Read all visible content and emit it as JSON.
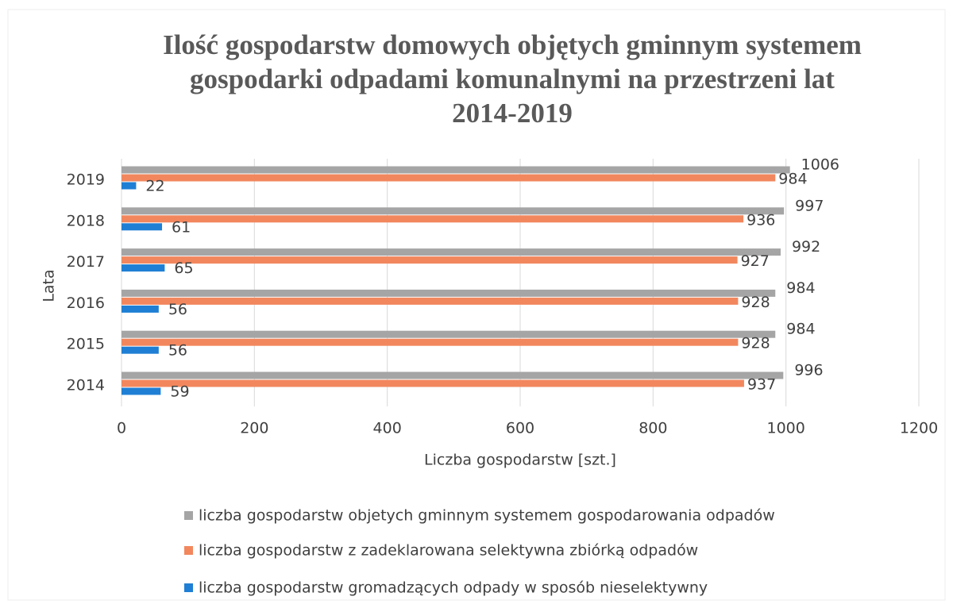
{
  "chart_data": {
    "type": "barh",
    "title": [
      "Ilość gospodarstw domowych objętych gminnym systemem",
      "gospodarki odpadami komunalnymi na przestrzeni lat",
      "2014-2019"
    ],
    "x_label": "Liczba gospodarstw [szt.]",
    "y_label": "Lata",
    "categories": [
      "2014",
      "2015",
      "2016",
      "2017",
      "2018",
      "2019"
    ],
    "series": [
      {
        "name": "liczba gospodarstw objetych gminnym systemem gospodarowania odpadów",
        "color": "#a5a5a5",
        "values": [
          996,
          984,
          984,
          992,
          997,
          1006
        ]
      },
      {
        "name": "liczba gospodarstw z zadeklarowana selektywna zbiórką odpadów",
        "color": "#f2875e",
        "values": [
          937,
          928,
          928,
          927,
          936,
          984
        ]
      },
      {
        "name": "liczba gospodarstw gromadzących odpady w sposób nieselektywny",
        "color": "#1f7fd4",
        "values": [
          59,
          56,
          56,
          65,
          61,
          22
        ]
      }
    ],
    "xlim": [
      0,
      1200
    ],
    "xticks": [
      0,
      200,
      400,
      600,
      800,
      1000,
      1200
    ],
    "grid": true,
    "legend": "bottom"
  }
}
